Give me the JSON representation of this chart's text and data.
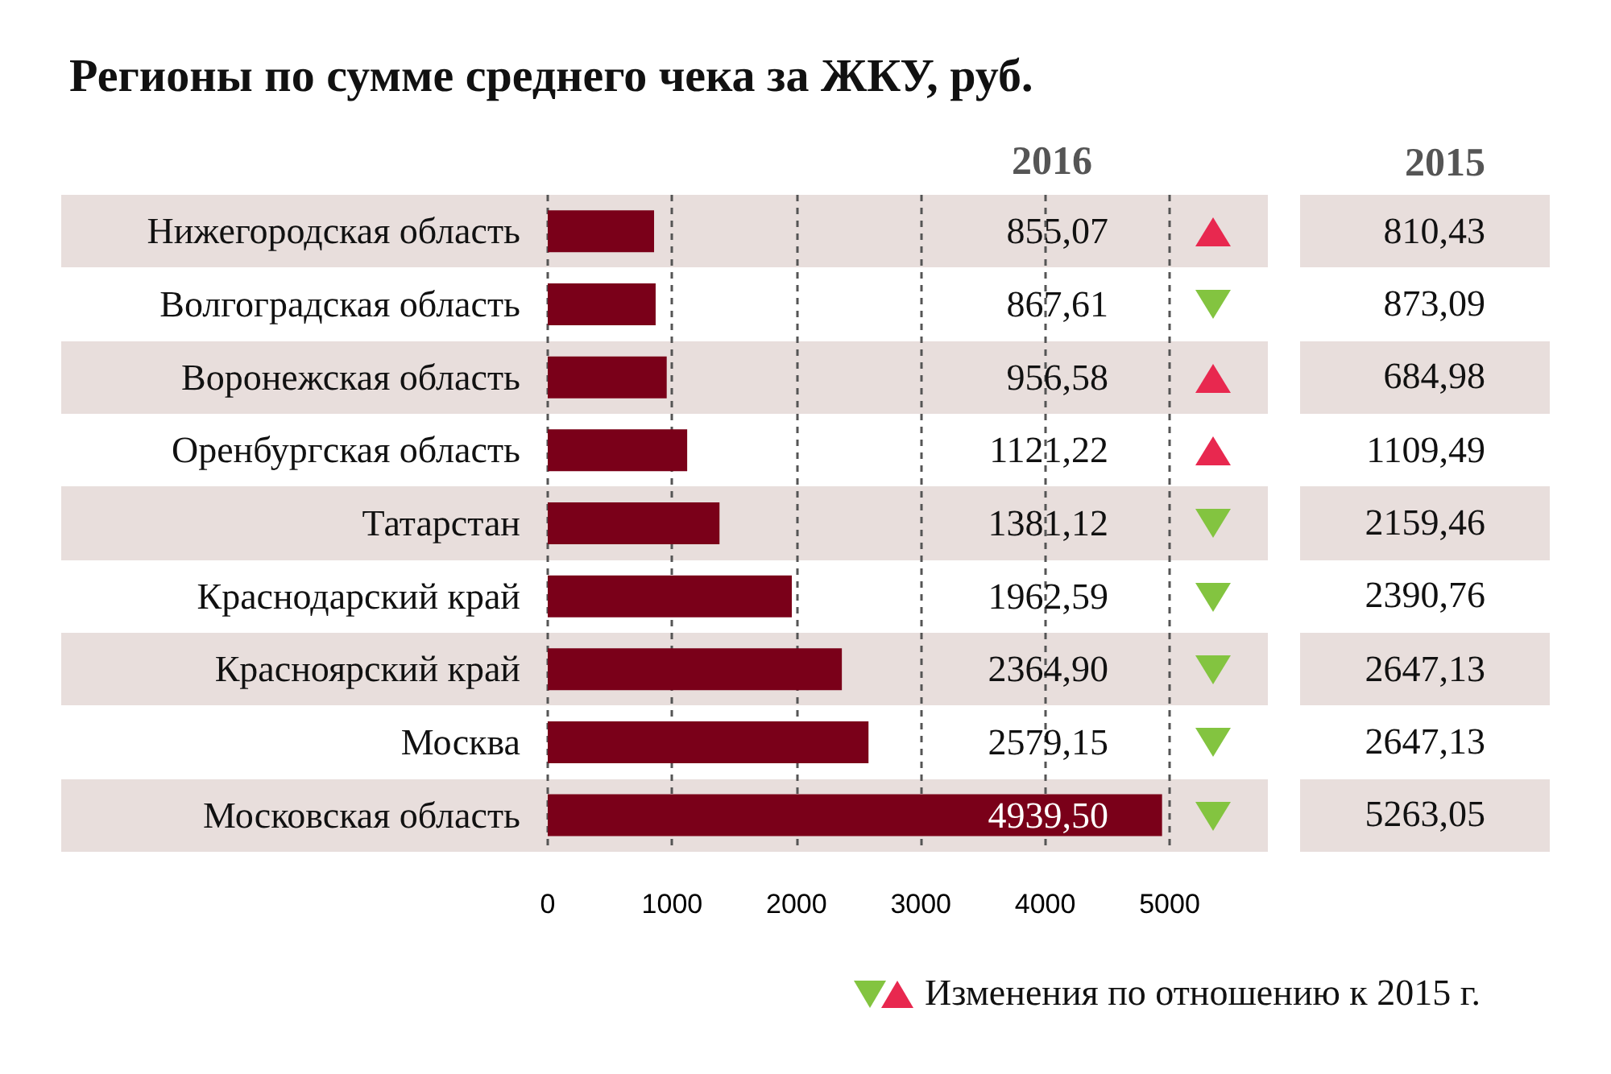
{
  "chart_data": [
    {
      "type": "bar",
      "orientation": "horizontal",
      "title": "Регионы по сумме среднего чека за ЖКУ, руб.",
      "categories": [
        "Нижегородская область",
        "Волгоградская область",
        "Воронежская область",
        "Оренбургская область",
        "Татарстан",
        "Краснодарский край",
        "Красноярский край",
        "Москва",
        "Московская область"
      ],
      "series": [
        {
          "name": "2016",
          "color": "#7a0019",
          "values": [
            855.07,
            867.61,
            956.58,
            1121.22,
            1381.12,
            1962.59,
            2364.9,
            2579.15,
            4939.5
          ],
          "value_labels": [
            "855,07",
            "867,61",
            "956,58",
            "1121,22",
            "1381,12",
            "1962,59",
            "2364,90",
            "2579,15",
            "4939,50"
          ]
        }
      ],
      "xlim": [
        0,
        5000
      ],
      "xticks": [
        0,
        1000,
        2000,
        3000,
        4000,
        5000
      ],
      "grid": "x",
      "legend": false,
      "annotations": [
        "Изменения по отношению к 2015 г."
      ]
    },
    {
      "type": "other",
      "title": "2015",
      "annotations": [
        "810,43",
        "873,09",
        "684,98",
        "1109,49",
        "2159,46",
        "2390,76",
        "2647,13",
        "2647,13",
        "5263,05"
      ]
    }
  ]
}
